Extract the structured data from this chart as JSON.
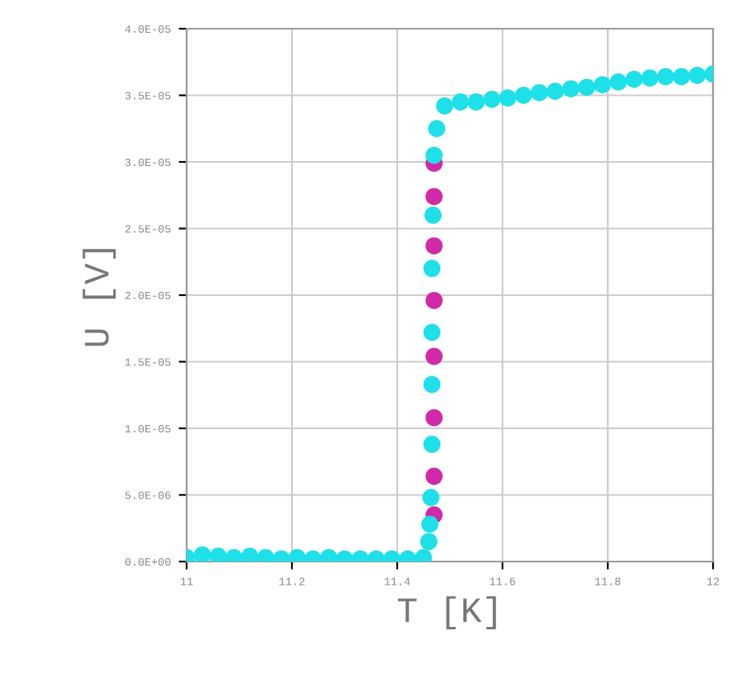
{
  "chart_data": {
    "type": "scatter",
    "xlabel": "T [K]",
    "ylabel": "U [V]",
    "xlim": [
      11,
      12
    ],
    "ylim": [
      0,
      4e-05
    ],
    "xticks": [
      11,
      11.2,
      11.4,
      11.6,
      11.8,
      12
    ],
    "yticks": [
      {
        "value": 0,
        "label": "0.0E+00"
      },
      {
        "value": 5e-06,
        "label": "5.0E-06"
      },
      {
        "value": 1e-05,
        "label": "1.0E-05"
      },
      {
        "value": 1.5e-05,
        "label": "1.5E-05"
      },
      {
        "value": 2e-05,
        "label": "2.0E-05"
      },
      {
        "value": 2.5e-05,
        "label": "2.5E-05"
      },
      {
        "value": 3e-05,
        "label": "3.0E-05"
      },
      {
        "value": 3.5e-05,
        "label": "3.5E-05"
      },
      {
        "value": 4e-05,
        "label": "4.0E-05"
      }
    ],
    "grid": true,
    "marker": "circle",
    "series": [
      {
        "color": "#d02aa8",
        "x": [
          11.47,
          11.47,
          11.47,
          11.47,
          11.47,
          11.47,
          11.47,
          11.47
        ],
        "values": [
          2.99e-05,
          2.74e-05,
          2.37e-05,
          1.96e-05,
          1.54e-05,
          1.08e-05,
          6.4e-06,
          3.5e-06
        ]
      },
      {
        "color": "#1ee0e8",
        "x": [
          11.0,
          11.03,
          11.06,
          11.09,
          11.12,
          11.15,
          11.18,
          11.21,
          11.24,
          11.27,
          11.3,
          11.33,
          11.36,
          11.39,
          11.42,
          11.45,
          11.46,
          11.462,
          11.464,
          11.466,
          11.466,
          11.466,
          11.466,
          11.468,
          11.47,
          11.475,
          11.49,
          11.52,
          11.55,
          11.58,
          11.61,
          11.64,
          11.67,
          11.7,
          11.73,
          11.76,
          11.79,
          11.82,
          11.85,
          11.88,
          11.91,
          11.94,
          11.97,
          12.0
        ],
        "values": [
          3e-07,
          5e-07,
          4e-07,
          3e-07,
          4e-07,
          3e-07,
          2e-07,
          3e-07,
          2e-07,
          3e-07,
          2e-07,
          2e-07,
          2e-07,
          2e-07,
          2e-07,
          3e-07,
          1.5e-06,
          2.8e-06,
          4.8e-06,
          8.8e-06,
          1.33e-05,
          1.72e-05,
          2.2e-05,
          2.6e-05,
          3.05e-05,
          3.25e-05,
          3.42e-05,
          3.45e-05,
          3.45e-05,
          3.47e-05,
          3.48e-05,
          3.5e-05,
          3.52e-05,
          3.53e-05,
          3.55e-05,
          3.56e-05,
          3.58e-05,
          3.6e-05,
          3.62e-05,
          3.63e-05,
          3.64e-05,
          3.64e-05,
          3.65e-05,
          3.66e-05
        ]
      }
    ]
  }
}
